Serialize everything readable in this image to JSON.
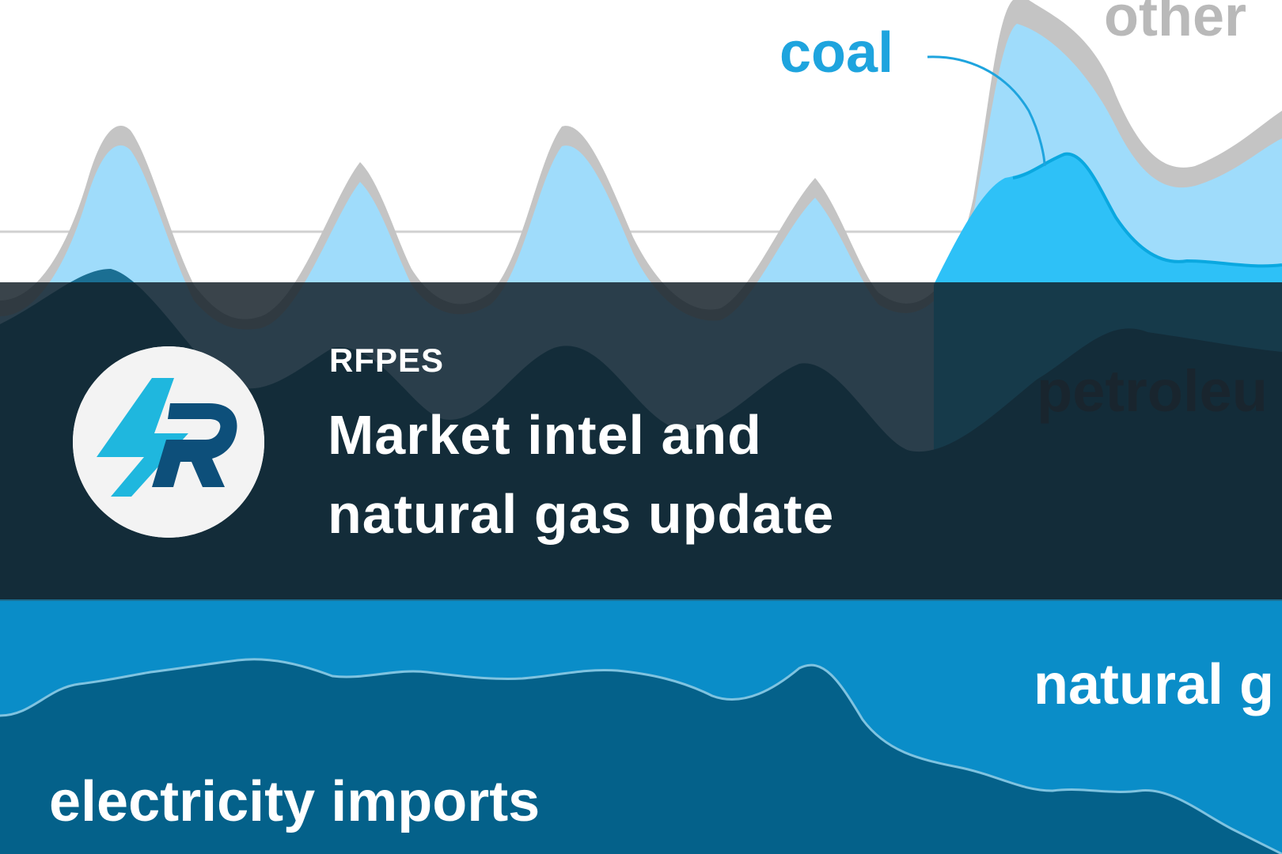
{
  "background_chart": {
    "labels": {
      "coal": "coal",
      "other": "other",
      "petroleum": "petroleu",
      "natural_gas": "natural g",
      "electricity_imports": "electricity imports"
    },
    "colors": {
      "other": "#c4c4c4",
      "coal_light": "#9fdcfb",
      "coal_bright": "#2ec1f7",
      "natural_gas": "#0a8dc8",
      "electricity_imports": "#04618a",
      "coal_label": "#1ea4de"
    }
  },
  "card": {
    "eyebrow": "RFPES",
    "title_lines": [
      "Market intel and",
      "natural gas update"
    ],
    "overlay_color": "#121e26"
  },
  "logo": {
    "icon": "rfpes-bolt-r-logo",
    "colors": {
      "bolt": "#1fb7de",
      "r": "#0d4f7a",
      "circle": "#f3f3f3"
    }
  }
}
